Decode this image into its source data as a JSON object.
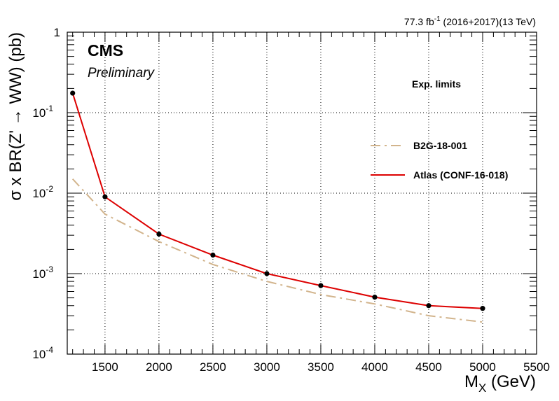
{
  "header": {
    "lumi_label": "77.3 fb",
    "lumi_exp": "-1",
    "lumi_rest": " (2016+2017)(13 TeV)",
    "experiment": "CMS",
    "status": "Preliminary"
  },
  "legend": {
    "header": "Exp. limits",
    "placement": "right"
  },
  "chart_data": {
    "type": "line",
    "xlabel_main": "M",
    "xlabel_sub": "X",
    "xlabel_unit": " (GeV)",
    "ylabel": "σ x BR(Z' → WW) (pb)",
    "xlim": [
      1150,
      5500
    ],
    "ylim": [
      0.0001,
      1
    ],
    "yscale": "log",
    "grid": true,
    "x_ticks": [
      1500,
      2000,
      2500,
      3000,
      3500,
      4000,
      4500,
      5000,
      5500
    ],
    "y_ticks": [
      {
        "base": "10",
        "exp": "-4",
        "value": 0.0001
      },
      {
        "base": "10",
        "exp": "-3",
        "value": 0.001
      },
      {
        "base": "10",
        "exp": "-2",
        "value": 0.01
      },
      {
        "base": "10",
        "exp": "-1",
        "value": 0.1
      },
      {
        "base": "1",
        "exp": "",
        "value": 1
      }
    ],
    "series": [
      {
        "name": "B2G-18-001",
        "color": "#d2b48c",
        "style": "dashdot",
        "markers": false,
        "x": [
          1200,
          1500,
          2000,
          2500,
          3000,
          3500,
          4000,
          4500,
          5000
        ],
        "y": [
          0.015,
          0.0055,
          0.0025,
          0.0013,
          0.0008,
          0.00055,
          0.00042,
          0.0003,
          0.00025
        ]
      },
      {
        "name": "Atlas (CONF-16-018)",
        "color": "#dd0000",
        "style": "solid",
        "markers": true,
        "x": [
          1200,
          1500,
          2000,
          2500,
          3000,
          3500,
          4000,
          4500,
          5000
        ],
        "y": [
          0.175,
          0.009,
          0.0031,
          0.0017,
          0.001,
          0.00071,
          0.00051,
          0.0004,
          0.00037
        ]
      }
    ]
  }
}
